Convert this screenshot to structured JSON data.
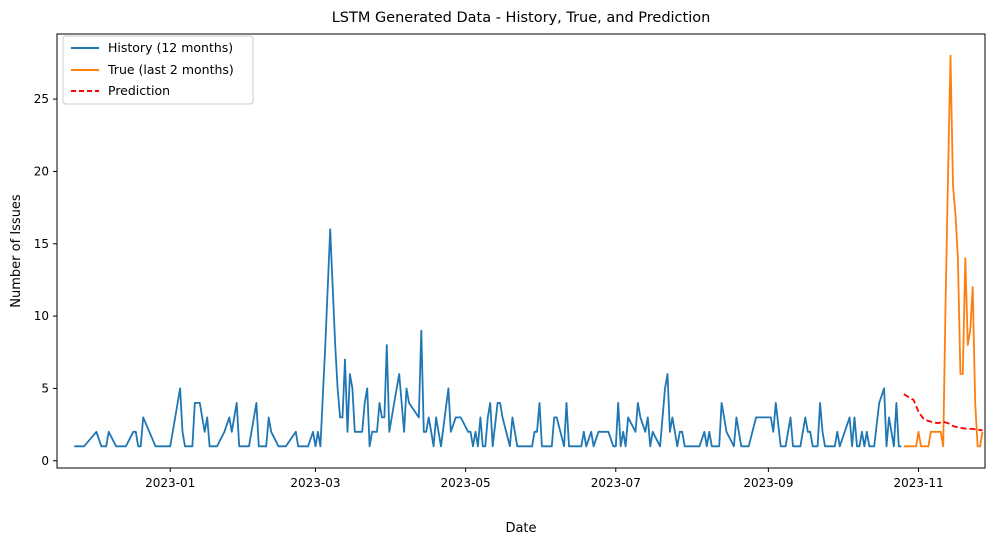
{
  "chart_data": {
    "type": "line",
    "title": "LSTM Generated Data - History, True, and Prediction",
    "xlabel": "Date",
    "ylabel": "Number of Issues",
    "x_ticks": [
      "2023-01",
      "2023-03",
      "2023-05",
      "2023-07",
      "2023-09",
      "2023-11"
    ],
    "x_tick_dates": [
      "2023-01-01",
      "2023-03-01",
      "2023-05-01",
      "2023-07-01",
      "2023-09-01",
      "2023-11-01"
    ],
    "y_ticks": [
      "0",
      "5",
      "10",
      "15",
      "20",
      "25"
    ],
    "y_tick_values": [
      0,
      5,
      10,
      15,
      20,
      25
    ],
    "xlim": [
      "2022-11-16",
      "2023-11-28"
    ],
    "ylim": [
      -0.5,
      29.5
    ],
    "grid": false,
    "legend_position": "top-left",
    "series": [
      {
        "name": "History (12 months)",
        "color": "#1f77b4",
        "style": "solid",
        "points": [
          [
            "2022-11-23",
            1
          ],
          [
            "2022-11-27",
            1
          ],
          [
            "2022-12-02",
            2
          ],
          [
            "2022-12-04",
            1
          ],
          [
            "2022-12-06",
            1
          ],
          [
            "2022-12-07",
            2
          ],
          [
            "2022-12-10",
            1
          ],
          [
            "2022-12-14",
            1
          ],
          [
            "2022-12-17",
            2
          ],
          [
            "2022-12-18",
            2
          ],
          [
            "2022-12-19",
            1
          ],
          [
            "2022-12-20",
            1
          ],
          [
            "2022-12-21",
            3
          ],
          [
            "2022-12-26",
            1
          ],
          [
            "2022-12-28",
            1
          ],
          [
            "2022-12-31",
            1
          ],
          [
            "2023-01-01",
            1
          ],
          [
            "2023-01-03",
            3
          ],
          [
            "2023-01-05",
            5
          ],
          [
            "2023-01-06",
            2
          ],
          [
            "2023-01-07",
            1
          ],
          [
            "2023-01-10",
            1
          ],
          [
            "2023-01-11",
            4
          ],
          [
            "2023-01-13",
            4
          ],
          [
            "2023-01-14",
            3
          ],
          [
            "2023-01-15",
            2
          ],
          [
            "2023-01-16",
            3
          ],
          [
            "2023-01-17",
            1
          ],
          [
            "2023-01-20",
            1
          ],
          [
            "2023-01-23",
            2
          ],
          [
            "2023-01-25",
            3
          ],
          [
            "2023-01-26",
            2
          ],
          [
            "2023-01-28",
            4
          ],
          [
            "2023-01-29",
            1
          ],
          [
            "2023-02-02",
            1
          ],
          [
            "2023-02-05",
            4
          ],
          [
            "2023-02-06",
            1
          ],
          [
            "2023-02-08",
            1
          ],
          [
            "2023-02-09",
            1
          ],
          [
            "2023-02-10",
            3
          ],
          [
            "2023-02-11",
            2
          ],
          [
            "2023-02-14",
            1
          ],
          [
            "2023-02-17",
            1
          ],
          [
            "2023-02-21",
            2
          ],
          [
            "2023-02-22",
            1
          ],
          [
            "2023-02-26",
            1
          ],
          [
            "2023-02-28",
            2
          ],
          [
            "2023-03-01",
            1
          ],
          [
            "2023-03-02",
            2
          ],
          [
            "2023-03-03",
            1
          ],
          [
            "2023-03-05",
            8
          ],
          [
            "2023-03-07",
            16
          ],
          [
            "2023-03-08",
            12
          ],
          [
            "2023-03-09",
            8
          ],
          [
            "2023-03-10",
            5
          ],
          [
            "2023-03-11",
            3
          ],
          [
            "2023-03-12",
            3
          ],
          [
            "2023-03-13",
            7
          ],
          [
            "2023-03-14",
            2
          ],
          [
            "2023-03-15",
            6
          ],
          [
            "2023-03-16",
            5
          ],
          [
            "2023-03-17",
            2
          ],
          [
            "2023-03-20",
            2
          ],
          [
            "2023-03-21",
            4
          ],
          [
            "2023-03-22",
            5
          ],
          [
            "2023-03-23",
            1
          ],
          [
            "2023-03-24",
            2
          ],
          [
            "2023-03-26",
            2
          ],
          [
            "2023-03-27",
            4
          ],
          [
            "2023-03-28",
            3
          ],
          [
            "2023-03-29",
            3
          ],
          [
            "2023-03-30",
            8
          ],
          [
            "2023-03-31",
            2
          ],
          [
            "2023-04-02",
            4
          ],
          [
            "2023-04-04",
            6
          ],
          [
            "2023-04-06",
            2
          ],
          [
            "2023-04-07",
            5
          ],
          [
            "2023-04-08",
            4
          ],
          [
            "2023-04-12",
            3
          ],
          [
            "2023-04-13",
            9
          ],
          [
            "2023-04-14",
            2
          ],
          [
            "2023-04-15",
            2
          ],
          [
            "2023-04-16",
            3
          ],
          [
            "2023-04-17",
            2
          ],
          [
            "2023-04-18",
            1
          ],
          [
            "2023-04-19",
            3
          ],
          [
            "2023-04-20",
            2
          ],
          [
            "2023-04-21",
            1
          ],
          [
            "2023-04-24",
            5
          ],
          [
            "2023-04-25",
            2
          ],
          [
            "2023-04-27",
            3
          ],
          [
            "2023-04-29",
            3
          ],
          [
            "2023-05-02",
            2
          ],
          [
            "2023-05-03",
            2
          ],
          [
            "2023-05-04",
            1
          ],
          [
            "2023-05-05",
            2
          ],
          [
            "2023-05-06",
            1
          ],
          [
            "2023-05-07",
            3
          ],
          [
            "2023-05-08",
            1
          ],
          [
            "2023-05-09",
            1
          ],
          [
            "2023-05-10",
            3
          ],
          [
            "2023-05-11",
            4
          ],
          [
            "2023-05-12",
            1
          ],
          [
            "2023-05-14",
            4
          ],
          [
            "2023-05-15",
            4
          ],
          [
            "2023-05-16",
            3
          ],
          [
            "2023-05-19",
            1
          ],
          [
            "2023-05-20",
            3
          ],
          [
            "2023-05-22",
            1
          ],
          [
            "2023-05-28",
            1
          ],
          [
            "2023-05-29",
            2
          ],
          [
            "2023-05-30",
            2
          ],
          [
            "2023-05-31",
            4
          ],
          [
            "2023-06-01",
            1
          ],
          [
            "2023-06-03",
            1
          ],
          [
            "2023-06-05",
            1
          ],
          [
            "2023-06-06",
            3
          ],
          [
            "2023-06-07",
            3
          ],
          [
            "2023-06-10",
            1
          ],
          [
            "2023-06-11",
            4
          ],
          [
            "2023-06-12",
            1
          ],
          [
            "2023-06-15",
            1
          ],
          [
            "2023-06-17",
            1
          ],
          [
            "2023-06-18",
            2
          ],
          [
            "2023-06-19",
            1
          ],
          [
            "2023-06-21",
            2
          ],
          [
            "2023-06-22",
            1
          ],
          [
            "2023-06-24",
            2
          ],
          [
            "2023-06-25",
            2
          ],
          [
            "2023-06-28",
            2
          ],
          [
            "2023-06-30",
            1
          ],
          [
            "2023-07-01",
            1
          ],
          [
            "2023-07-02",
            4
          ],
          [
            "2023-07-03",
            1
          ],
          [
            "2023-07-04",
            2
          ],
          [
            "2023-07-05",
            1
          ],
          [
            "2023-07-06",
            3
          ],
          [
            "2023-07-09",
            2
          ],
          [
            "2023-07-10",
            4
          ],
          [
            "2023-07-11",
            3
          ],
          [
            "2023-07-13",
            2
          ],
          [
            "2023-07-14",
            3
          ],
          [
            "2023-07-15",
            1
          ],
          [
            "2023-07-16",
            2
          ],
          [
            "2023-07-19",
            1
          ],
          [
            "2023-07-21",
            5
          ],
          [
            "2023-07-22",
            6
          ],
          [
            "2023-07-23",
            2
          ],
          [
            "2023-07-24",
            3
          ],
          [
            "2023-07-26",
            1
          ],
          [
            "2023-07-27",
            2
          ],
          [
            "2023-07-28",
            2
          ],
          [
            "2023-07-29",
            1
          ],
          [
            "2023-07-31",
            1
          ],
          [
            "2023-08-02",
            1
          ],
          [
            "2023-08-04",
            1
          ],
          [
            "2023-08-06",
            2
          ],
          [
            "2023-08-07",
            1
          ],
          [
            "2023-08-08",
            2
          ],
          [
            "2023-08-09",
            1
          ],
          [
            "2023-08-12",
            1
          ],
          [
            "2023-08-13",
            4
          ],
          [
            "2023-08-14",
            3
          ],
          [
            "2023-08-15",
            2
          ],
          [
            "2023-08-18",
            1
          ],
          [
            "2023-08-19",
            3
          ],
          [
            "2023-08-20",
            2
          ],
          [
            "2023-08-21",
            1
          ],
          [
            "2023-08-23",
            1
          ],
          [
            "2023-08-24",
            1
          ],
          [
            "2023-08-27",
            3
          ],
          [
            "2023-08-30",
            3
          ],
          [
            "2023-09-02",
            3
          ],
          [
            "2023-09-03",
            2
          ],
          [
            "2023-09-04",
            4
          ],
          [
            "2023-09-06",
            1
          ],
          [
            "2023-09-08",
            1
          ],
          [
            "2023-09-10",
            3
          ],
          [
            "2023-09-11",
            1
          ],
          [
            "2023-09-14",
            1
          ],
          [
            "2023-09-16",
            3
          ],
          [
            "2023-09-17",
            2
          ],
          [
            "2023-09-18",
            2
          ],
          [
            "2023-09-19",
            1
          ],
          [
            "2023-09-21",
            1
          ],
          [
            "2023-09-22",
            4
          ],
          [
            "2023-09-23",
            2
          ],
          [
            "2023-09-24",
            1
          ],
          [
            "2023-09-28",
            1
          ],
          [
            "2023-09-29",
            2
          ],
          [
            "2023-09-30",
            1
          ],
          [
            "2023-10-04",
            3
          ],
          [
            "2023-10-05",
            1
          ],
          [
            "2023-10-06",
            3
          ],
          [
            "2023-10-07",
            1
          ],
          [
            "2023-10-08",
            1
          ],
          [
            "2023-10-09",
            2
          ],
          [
            "2023-10-10",
            1
          ],
          [
            "2023-10-11",
            2
          ],
          [
            "2023-10-12",
            1
          ],
          [
            "2023-10-14",
            1
          ],
          [
            "2023-10-16",
            4
          ],
          [
            "2023-10-18",
            5
          ],
          [
            "2023-10-19",
            1
          ],
          [
            "2023-10-20",
            3
          ],
          [
            "2023-10-22",
            1
          ],
          [
            "2023-10-23",
            4
          ],
          [
            "2023-10-24",
            1
          ],
          [
            "2023-10-25",
            1
          ]
        ]
      },
      {
        "name": "True (last 2 months)",
        "color": "#ff7f0e",
        "style": "solid",
        "points": [
          [
            "2023-10-26",
            1
          ],
          [
            "2023-10-27",
            1
          ],
          [
            "2023-10-28",
            1
          ],
          [
            "2023-10-29",
            1
          ],
          [
            "2023-10-30",
            1
          ],
          [
            "2023-10-31",
            1
          ],
          [
            "2023-11-01",
            2
          ],
          [
            "2023-11-02",
            1
          ],
          [
            "2023-11-03",
            1
          ],
          [
            "2023-11-04",
            1
          ],
          [
            "2023-11-05",
            1
          ],
          [
            "2023-11-06",
            2
          ],
          [
            "2023-11-07",
            2
          ],
          [
            "2023-11-08",
            2
          ],
          [
            "2023-11-09",
            2
          ],
          [
            "2023-11-10",
            2
          ],
          [
            "2023-11-11",
            1
          ],
          [
            "2023-11-12",
            11
          ],
          [
            "2023-11-13",
            20
          ],
          [
            "2023-11-14",
            28
          ],
          [
            "2023-11-15",
            19
          ],
          [
            "2023-11-16",
            17
          ],
          [
            "2023-11-17",
            14
          ],
          [
            "2023-11-18",
            6
          ],
          [
            "2023-11-19",
            6
          ],
          [
            "2023-11-20",
            14
          ],
          [
            "2023-11-21",
            8
          ],
          [
            "2023-11-22",
            9
          ],
          [
            "2023-11-23",
            12
          ],
          [
            "2023-11-24",
            4
          ],
          [
            "2023-11-25",
            1
          ],
          [
            "2023-11-26",
            1
          ],
          [
            "2023-11-27",
            2
          ]
        ]
      },
      {
        "name": "Prediction",
        "color": "#ff0000",
        "style": "dashed",
        "points": [
          [
            "2023-10-26",
            4.6
          ],
          [
            "2023-10-28",
            4.4
          ],
          [
            "2023-10-30",
            4.2
          ],
          [
            "2023-11-01",
            3.4
          ],
          [
            "2023-11-03",
            2.9
          ],
          [
            "2023-11-05",
            2.75
          ],
          [
            "2023-11-07",
            2.65
          ],
          [
            "2023-11-09",
            2.6
          ],
          [
            "2023-11-11",
            2.7
          ],
          [
            "2023-11-13",
            2.6
          ],
          [
            "2023-11-15",
            2.4
          ],
          [
            "2023-11-17",
            2.3
          ],
          [
            "2023-11-19",
            2.25
          ],
          [
            "2023-11-21",
            2.2
          ],
          [
            "2023-11-23",
            2.2
          ],
          [
            "2023-11-25",
            2.15
          ],
          [
            "2023-11-27",
            2.1
          ]
        ]
      }
    ]
  }
}
